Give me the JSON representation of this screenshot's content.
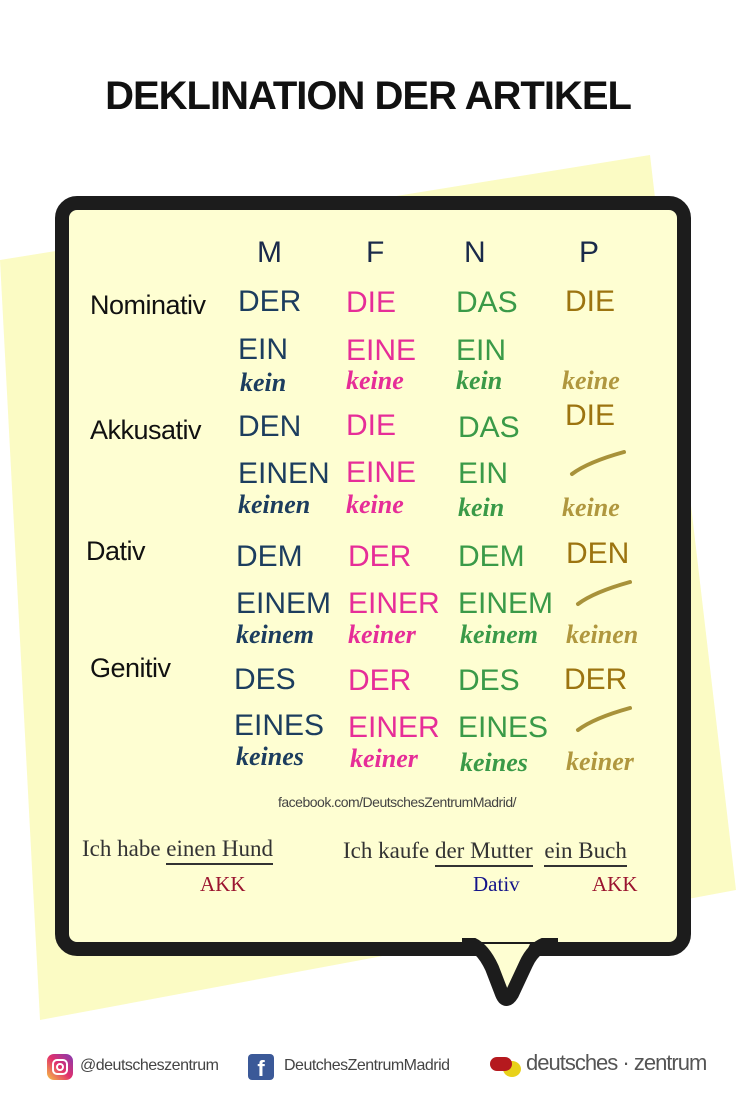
{
  "title": "DEKLINATION DER ARTIKEL",
  "columns": [
    "M",
    "F",
    "N",
    "P"
  ],
  "cases": {
    "nominativ": {
      "label": "Nominativ",
      "def": [
        "DER",
        "DIE",
        "DAS",
        "DIE"
      ],
      "indef": [
        "EIN",
        "EINE",
        "EIN"
      ],
      "neg": [
        "kein",
        "keine",
        "kein",
        "keine"
      ]
    },
    "akkusativ": {
      "label": "Akkusativ",
      "def": [
        "DEN",
        "DIE",
        "DAS",
        "DIE"
      ],
      "indef": [
        "EINEN",
        "EINE",
        "EIN"
      ],
      "neg": [
        "keinen",
        "keine",
        "kein",
        "keine"
      ]
    },
    "dativ": {
      "label": "Dativ",
      "def": [
        "DEM",
        "DER",
        "DEM",
        "DEN"
      ],
      "indef": [
        "EINEM",
        "EINER",
        "EINEM"
      ],
      "neg": [
        "keinem",
        "keiner",
        "keinem",
        "keinen"
      ]
    },
    "genitiv": {
      "label": "Genitiv",
      "def": [
        "DES",
        "DER",
        "DES",
        "DER"
      ],
      "indef": [
        "EINES",
        "EINER",
        "EINES"
      ],
      "neg": [
        "keines",
        "keiner",
        "keines",
        "keiner"
      ]
    }
  },
  "colors": {
    "M": "#1c3d5e",
    "F": "#e62d98",
    "N": "#3a9a48",
    "P": "#9c7410"
  },
  "facebook_url": "facebook.com/DeutschesZentrumMadrid/",
  "examples": [
    {
      "prefix": "Ich habe",
      "phrases": [
        {
          "text": "einen Hund",
          "case": "AKK"
        }
      ]
    },
    {
      "prefix": "Ich kaufe",
      "phrases": [
        {
          "text": "der Mutter",
          "case": "Dativ"
        },
        {
          "text": "ein Buch",
          "case": "AKK"
        }
      ]
    }
  ],
  "footer": {
    "instagram": "@deutscheszentrum",
    "facebook": "DeutchesZentrumMadrid",
    "brand": "deutsches · zentrum"
  }
}
